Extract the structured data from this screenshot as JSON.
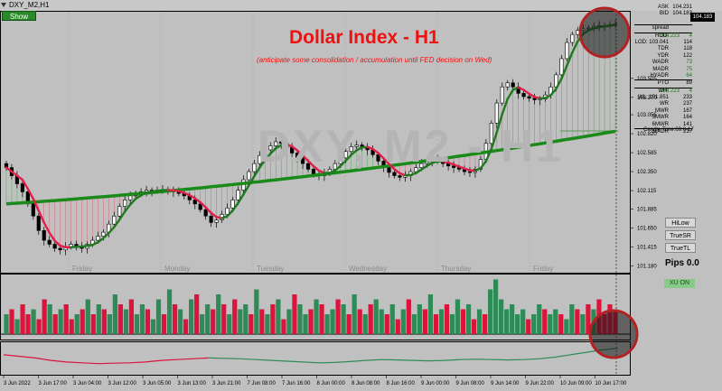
{
  "window": {
    "title": "DXY_M2,H1",
    "show_label": "Show"
  },
  "overlay": {
    "title": "Dollar Index - H1",
    "subtitle": "(anticipate some consolidation / accumulation until FED decision on Wed)",
    "watermark": "DXY, M2 - H1"
  },
  "stats": [
    {
      "label": "ASK",
      "value": "104.231",
      "green": false,
      "hr": false
    },
    {
      "label": "BID",
      "value": "104.183",
      "green": false,
      "hr": false
    },
    {
      "label": "",
      "value": "",
      "green": false,
      "hr": false
    },
    {
      "label": "spread",
      "value": "",
      "green": false,
      "hr": true
    },
    {
      "label": "HOD:",
      "value": "104.223",
      "extra": "4",
      "green": true,
      "hr": true
    },
    {
      "label": "LOD: 103.041",
      "value": "114",
      "green": false,
      "hr": false
    },
    {
      "label": "TDR",
      "value": "118",
      "green": false,
      "hr": false
    },
    {
      "label": "YDR",
      "value": "122",
      "green": false,
      "hr": false
    },
    {
      "label": "WADR",
      "value": "73",
      "green": true,
      "hr": false
    },
    {
      "label": "MADR",
      "value": "75",
      "green": true,
      "hr": false
    },
    {
      "label": "HYADR",
      "value": "64",
      "green": true,
      "hr": false
    },
    {
      "label": "PTO",
      "value": "89",
      "green": false,
      "hr": true
    },
    {
      "label": "WH:",
      "value": "104.223",
      "extra": "4",
      "green": true,
      "hr": true
    },
    {
      "label": "WL: 101.851",
      "value": "233",
      "green": false,
      "hr": false
    },
    {
      "label": "WR",
      "value": "237",
      "green": false,
      "hr": false
    },
    {
      "label": "MWR",
      "value": "167",
      "green": false,
      "hr": false
    },
    {
      "label": "3MWR",
      "value": "164",
      "green": false,
      "hr": false
    },
    {
      "label": "6MWR",
      "value": "141",
      "green": false,
      "hr": false
    },
    {
      "label": "3xADR",
      "value": "217",
      "green": false,
      "hr": true
    }
  ],
  "candle_time": "Candle Time:69:0-17",
  "price_tag": "104.183",
  "buttons": {
    "hilow": "HiLow",
    "truesr": "TrueSR",
    "truetl": "TrueTL",
    "xu_on": "XU ON"
  },
  "pips": "Pips 0.0",
  "colors": {
    "bull": "#2e8b57",
    "bear": "#dc143c",
    "ma_slow": "#1a8a1a",
    "ma_fast_up": "#1f7a1f",
    "ma_fast_down": "#e0204a",
    "circle": "#b22222"
  },
  "chart_data": [
    {
      "type": "candlestick",
      "title": "Dollar Index - H1",
      "day_labels": [
        "Friday",
        "Monday",
        "Tuesday",
        "Wednesday",
        "Thursday",
        "Friday"
      ],
      "y_ticks": [
        "104.205",
        "103.975",
        "103.740",
        "103.505",
        "103.270",
        "103.055",
        "102.820",
        "102.585",
        "102.350",
        "102.115",
        "101.885",
        "101.650",
        "101.415",
        "101.180"
      ],
      "ylim": [
        101.12,
        104.32
      ],
      "x_ticks": [
        "3 Jun 2022",
        "3 Jun 17:00",
        "3 Jun 04:00",
        "3 Jun 12:00",
        "3 Jun 05:00",
        "3 Jun 13:00",
        "3 Jun 21:00",
        "7 Jun 08:00",
        "7 Jun 16:00",
        "8 Jun 00:00",
        "8 Jun 08:00",
        "8 Jun 16:00",
        "9 Jun 00:00",
        "9 Jun 08:00",
        "9 Jun 14:00",
        "9 Jun 22:00",
        "10 Jun 09:00",
        "10 Jun 17:00"
      ],
      "close": [
        102.4,
        102.3,
        102.2,
        102.1,
        101.95,
        101.8,
        101.62,
        101.5,
        101.45,
        101.4,
        101.38,
        101.42,
        101.45,
        101.42,
        101.4,
        101.45,
        101.5,
        101.55,
        101.6,
        101.7,
        101.8,
        101.92,
        102.0,
        102.05,
        102.08,
        102.1,
        102.12,
        102.11,
        102.12,
        102.13,
        102.12,
        102.1,
        102.08,
        102.05,
        102.0,
        101.95,
        101.88,
        101.8,
        101.72,
        101.75,
        101.82,
        101.9,
        102.0,
        102.12,
        102.25,
        102.35,
        102.45,
        102.55,
        102.62,
        102.67,
        102.72,
        102.7,
        102.65,
        102.58,
        102.52,
        102.45,
        102.38,
        102.32,
        102.3,
        102.33,
        102.38,
        102.45,
        102.52,
        102.6,
        102.66,
        102.68,
        102.66,
        102.62,
        102.56,
        102.48,
        102.4,
        102.34,
        102.3,
        102.28,
        102.3,
        102.35,
        102.4,
        102.45,
        102.48,
        102.5,
        102.48,
        102.45,
        102.42,
        102.4,
        102.38,
        102.35,
        102.34,
        102.38,
        102.5,
        102.7,
        102.95,
        103.2,
        103.4,
        103.45,
        103.4,
        103.32,
        103.28,
        103.26,
        103.24,
        103.25,
        103.3,
        103.4,
        103.55,
        103.75,
        103.95,
        104.05,
        104.1,
        104.12,
        104.13,
        104.15,
        104.16,
        104.16,
        104.17,
        104.18
      ],
      "ma_slow": {
        "name": "",
        "start": 101.95,
        "end": 102.85
      },
      "xu_histogram": [
        4,
        -5,
        3,
        -6,
        -4,
        5,
        -3,
        -7,
        6,
        -4,
        5,
        -6,
        -3,
        4,
        -5,
        7,
        -4,
        6,
        -5,
        4,
        8,
        -6,
        5,
        -7,
        4,
        6,
        -5,
        3,
        7,
        -4,
        9,
        -6,
        5,
        -3,
        7,
        -8,
        4,
        6,
        -5,
        8,
        -6,
        4,
        -7,
        5,
        6,
        -4,
        9,
        -5,
        4,
        -6,
        7,
        -3,
        5,
        -8,
        6,
        4,
        -5,
        7,
        -6,
        4,
        5,
        -7,
        6,
        -4,
        8,
        -5,
        4,
        -6,
        7,
        5,
        -4,
        6,
        -3,
        5,
        -7,
        4,
        6,
        -5,
        8,
        -4,
        5,
        -6,
        4,
        7,
        -5,
        6,
        -3,
        5,
        -4,
        9,
        11,
        7,
        5,
        6,
        4,
        5,
        -3,
        4,
        6,
        -5,
        4,
        5,
        -4,
        3,
        6,
        -5,
        4,
        -6,
        5,
        -7,
        -4,
        -6,
        -5
      ],
      "oscillator": [
        0.4,
        0.3,
        0.2,
        0.05,
        -0.05,
        -0.1,
        -0.15,
        -0.12,
        -0.1,
        -0.05,
        0.05,
        0.1,
        0.15,
        0.2,
        0.18,
        0.15,
        0.1,
        0.05,
        0.0,
        -0.05,
        -0.1,
        -0.08,
        -0.02,
        0.05,
        0.1,
        0.08,
        0.05,
        0.02,
        0.05,
        0.1,
        0.12,
        0.1,
        0.08,
        0.1,
        0.15,
        0.25,
        0.4,
        0.55,
        0.7,
        0.8
      ]
    }
  ]
}
